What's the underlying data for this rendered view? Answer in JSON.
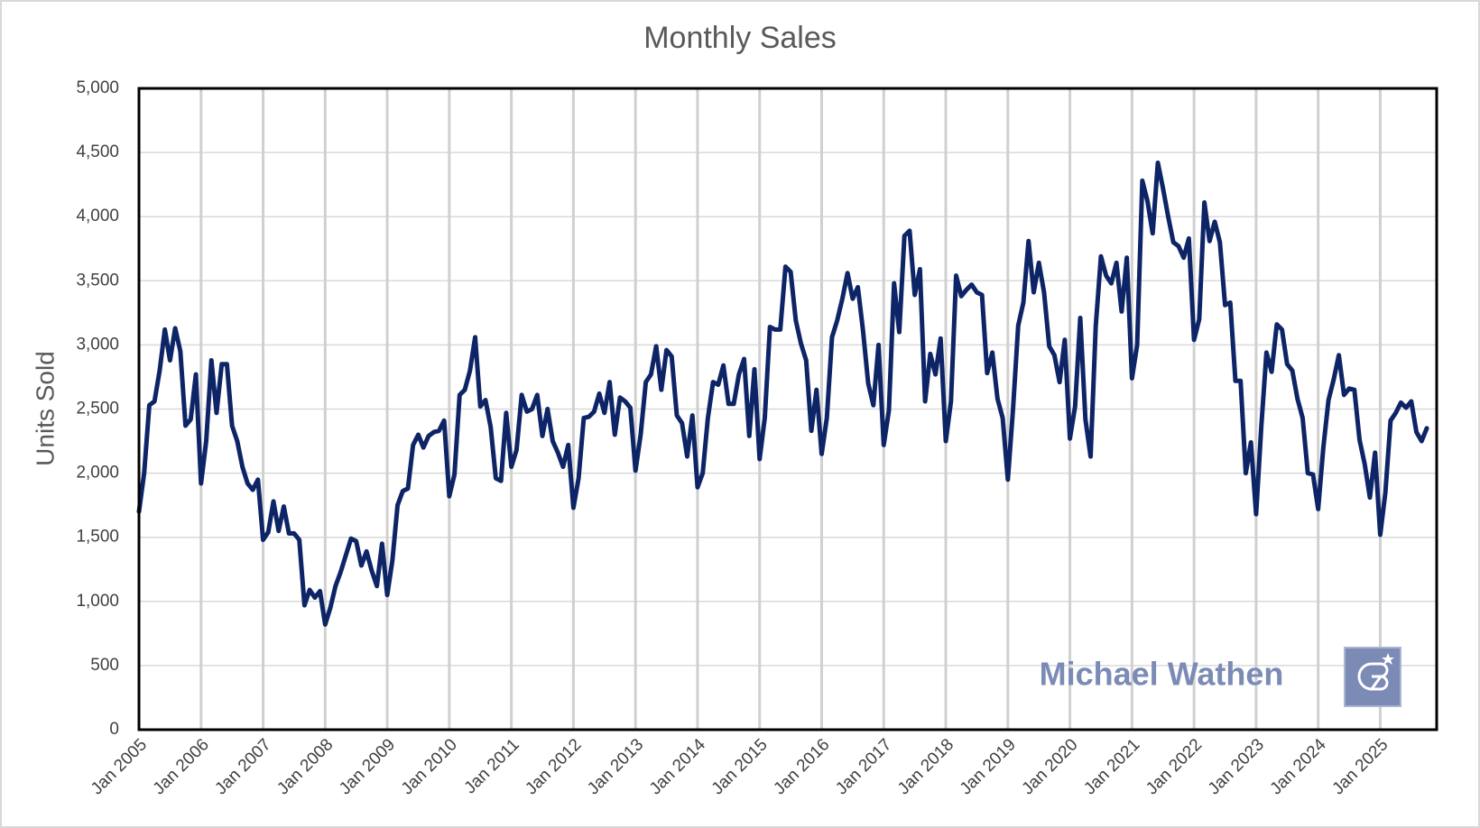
{
  "chart_data": {
    "type": "line",
    "title": "Monthly Sales",
    "y_label": "Units Sold",
    "watermark": "Michael Wathen",
    "categories": [
      "Jan 2005",
      null,
      null,
      null,
      null,
      null,
      null,
      null,
      null,
      null,
      null,
      null,
      "Jan 2006",
      null,
      null,
      null,
      null,
      null,
      null,
      null,
      null,
      null,
      null,
      null,
      "Jan 2007",
      null,
      null,
      null,
      null,
      null,
      null,
      null,
      null,
      null,
      null,
      null,
      "Jan 2008",
      null,
      null,
      null,
      null,
      null,
      null,
      null,
      null,
      null,
      null,
      null,
      "Jan 2009",
      null,
      null,
      null,
      null,
      null,
      null,
      null,
      null,
      null,
      null,
      null,
      "Jan 2010",
      null,
      null,
      null,
      null,
      null,
      null,
      null,
      null,
      null,
      null,
      null,
      "Jan 2011",
      null,
      null,
      null,
      null,
      null,
      null,
      null,
      null,
      null,
      null,
      null,
      "Jan 2012",
      null,
      null,
      null,
      null,
      null,
      null,
      null,
      null,
      null,
      null,
      null,
      "Jan 2013",
      null,
      null,
      null,
      null,
      null,
      null,
      null,
      null,
      null,
      null,
      null,
      "Jan 2014",
      null,
      null,
      null,
      null,
      null,
      null,
      null,
      null,
      null,
      null,
      null,
      "Jan 2015",
      null,
      null,
      null,
      null,
      null,
      null,
      null,
      null,
      null,
      null,
      null,
      "Jan 2016",
      null,
      null,
      null,
      null,
      null,
      null,
      null,
      null,
      null,
      null,
      null,
      "Jan 2017",
      null,
      null,
      null,
      null,
      null,
      null,
      null,
      null,
      null,
      null,
      null,
      "Jan 2018",
      null,
      null,
      null,
      null,
      null,
      null,
      null,
      null,
      null,
      null,
      null,
      "Jan 2019",
      null,
      null,
      null,
      null,
      null,
      null,
      null,
      null,
      null,
      null,
      null,
      "Jan 2020",
      null,
      null,
      null,
      null,
      null,
      null,
      null,
      null,
      null,
      null,
      null,
      "Jan 2021",
      null,
      null,
      null,
      null,
      null,
      null,
      null,
      null,
      null,
      null,
      null,
      "Jan 2022",
      null,
      null,
      null,
      null,
      null,
      null,
      null,
      null,
      null,
      null,
      null,
      "Jan 2023",
      null,
      null,
      null,
      null,
      null,
      null,
      null,
      null,
      null,
      null,
      null,
      "Jan 2024",
      null,
      null,
      null,
      null,
      null,
      null,
      null,
      null,
      null,
      null,
      null,
      "Jan 2025",
      null,
      null,
      null,
      null,
      null,
      null,
      null,
      null,
      null
    ],
    "series": [
      {
        "name": "Units Sold",
        "color": "#0d2466",
        "values": [
          1700,
          2000,
          2530,
          2560,
          2800,
          3120,
          2880,
          3130,
          2950,
          2370,
          2420,
          2770,
          1920,
          2250,
          2880,
          2470,
          2850,
          2850,
          2370,
          2250,
          2050,
          1920,
          1870,
          1950,
          1480,
          1540,
          1780,
          1550,
          1740,
          1530,
          1530,
          1480,
          970,
          1090,
          1030,
          1080,
          820,
          950,
          1120,
          1230,
          1360,
          1490,
          1470,
          1280,
          1390,
          1240,
          1120,
          1450,
          1050,
          1320,
          1750,
          1860,
          1880,
          2220,
          2300,
          2200,
          2290,
          2320,
          2330,
          2410,
          1820,
          1990,
          2610,
          2650,
          2800,
          3060,
          2520,
          2570,
          2360,
          1960,
          1940,
          2470,
          2050,
          2180,
          2610,
          2480,
          2500,
          2610,
          2290,
          2500,
          2250,
          2160,
          2050,
          2220,
          1730,
          1960,
          2430,
          2440,
          2480,
          2620,
          2470,
          2710,
          2300,
          2590,
          2560,
          2510,
          2020,
          2300,
          2710,
          2770,
          2990,
          2650,
          2960,
          2910,
          2450,
          2390,
          2130,
          2450,
          1890,
          2000,
          2430,
          2710,
          2690,
          2840,
          2540,
          2540,
          2770,
          2890,
          2290,
          2810,
          2110,
          2430,
          3140,
          3120,
          3120,
          3610,
          3570,
          3190,
          3010,
          2880,
          2330,
          2650,
          2150,
          2430,
          3060,
          3190,
          3360,
          3560,
          3360,
          3450,
          3110,
          2700,
          2530,
          3000,
          2220,
          2490,
          3480,
          3100,
          3850,
          3890,
          3390,
          3590,
          2560,
          2930,
          2770,
          3050,
          2250,
          2560,
          3540,
          3380,
          3430,
          3470,
          3410,
          3390,
          2780,
          2940,
          2580,
          2430,
          1950,
          2500,
          3150,
          3330,
          3810,
          3410,
          3640,
          3410,
          2990,
          2920,
          2710,
          3040,
          2270,
          2520,
          3210,
          2420,
          2130,
          3150,
          3690,
          3540,
          3480,
          3640,
          3260,
          3680,
          2740,
          3000,
          4280,
          4120,
          3870,
          4420,
          4220,
          4000,
          3800,
          3770,
          3680,
          3830,
          3040,
          3200,
          4110,
          3810,
          3960,
          3800,
          3310,
          3330,
          2720,
          2720,
          2000,
          2240,
          1680,
          2360,
          2940,
          2790,
          3160,
          3120,
          2850,
          2800,
          2580,
          2430,
          2000,
          1990,
          1720,
          2200,
          2570,
          2730,
          2920,
          2610,
          2660,
          2650,
          2260,
          2070,
          1810,
          2160,
          1520,
          1850,
          2410,
          2470,
          2550,
          2510,
          2560,
          2320,
          2250,
          2350
        ]
      }
    ],
    "ylim": [
      0,
      5000
    ],
    "yticks": [
      0,
      500,
      {
        "value": 1000,
        "label": "1,000"
      },
      {
        "value": 1500,
        "label": "1,500"
      },
      {
        "value": 2000,
        "label": "2,000"
      },
      {
        "value": 2500,
        "label": "2,500"
      },
      {
        "value": 3000,
        "label": "3,000"
      },
      {
        "value": 3500,
        "label": "3,500"
      },
      {
        "value": 4000,
        "label": "4,000"
      },
      {
        "value": 4500,
        "label": "4,500"
      },
      {
        "value": 5000,
        "label": "5,000"
      }
    ],
    "grid": true
  }
}
